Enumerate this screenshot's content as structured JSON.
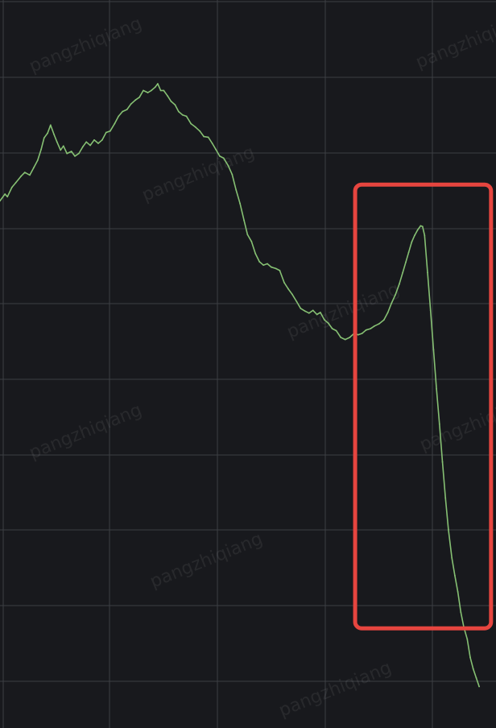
{
  "chart_data": {
    "type": "line",
    "title": "",
    "xlabel": "",
    "ylabel": "",
    "xlim": [
      0,
      100
    ],
    "ylim": [
      0,
      100
    ],
    "grid": true,
    "series": [
      {
        "color": "#86c073",
        "points": [
          [
            0.0,
            74.6
          ],
          [
            1.0,
            75.6
          ],
          [
            1.5,
            75.2
          ],
          [
            2.4,
            76.6
          ],
          [
            3.2,
            77.3
          ],
          [
            4.2,
            78.2
          ],
          [
            5.0,
            78.8
          ],
          [
            6.0,
            78.4
          ],
          [
            6.8,
            79.5
          ],
          [
            7.6,
            80.6
          ],
          [
            8.3,
            82.2
          ],
          [
            8.9,
            83.9
          ],
          [
            9.6,
            84.6
          ],
          [
            10.2,
            85.8
          ],
          [
            10.9,
            84.4
          ],
          [
            11.5,
            83.3
          ],
          [
            12.2,
            82.1
          ],
          [
            12.8,
            82.7
          ],
          [
            13.5,
            81.6
          ],
          [
            14.4,
            81.9
          ],
          [
            15.1,
            81.2
          ],
          [
            15.9,
            81.6
          ],
          [
            16.7,
            82.6
          ],
          [
            17.4,
            83.3
          ],
          [
            18.2,
            82.8
          ],
          [
            19.0,
            83.6
          ],
          [
            19.8,
            83.1
          ],
          [
            20.6,
            83.6
          ],
          [
            21.4,
            84.7
          ],
          [
            22.2,
            84.9
          ],
          [
            23.1,
            86.0
          ],
          [
            23.9,
            87.1
          ],
          [
            24.7,
            87.8
          ],
          [
            25.6,
            88.1
          ],
          [
            26.4,
            88.9
          ],
          [
            27.3,
            89.5
          ],
          [
            28.1,
            89.9
          ],
          [
            28.9,
            90.9
          ],
          [
            29.8,
            90.6
          ],
          [
            30.5,
            90.9
          ],
          [
            31.3,
            91.4
          ],
          [
            31.8,
            91.9
          ],
          [
            32.4,
            90.9
          ],
          [
            33.0,
            90.9
          ],
          [
            33.8,
            90.1
          ],
          [
            34.5,
            89.3
          ],
          [
            35.3,
            88.8
          ],
          [
            36.0,
            87.8
          ],
          [
            36.8,
            87.3
          ],
          [
            37.6,
            87.1
          ],
          [
            38.5,
            86.0
          ],
          [
            39.4,
            85.5
          ],
          [
            40.3,
            84.9
          ],
          [
            41.1,
            84.1
          ],
          [
            42.0,
            84.0
          ],
          [
            42.8,
            83.1
          ],
          [
            43.5,
            82.2
          ],
          [
            44.3,
            81.2
          ],
          [
            45.1,
            80.9
          ],
          [
            46.0,
            79.8
          ],
          [
            46.8,
            78.5
          ],
          [
            47.6,
            76.2
          ],
          [
            48.4,
            74.2
          ],
          [
            49.2,
            71.7
          ],
          [
            49.9,
            69.6
          ],
          [
            50.7,
            68.6
          ],
          [
            51.5,
            66.8
          ],
          [
            52.3,
            65.6
          ],
          [
            53.1,
            65.1
          ],
          [
            53.9,
            65.3
          ],
          [
            54.7,
            64.8
          ],
          [
            55.6,
            64.6
          ],
          [
            56.4,
            64.3
          ],
          [
            57.3,
            62.5
          ],
          [
            58.1,
            61.6
          ],
          [
            58.9,
            60.8
          ],
          [
            59.8,
            59.7
          ],
          [
            60.6,
            58.7
          ],
          [
            61.5,
            58.3
          ],
          [
            62.3,
            58.0
          ],
          [
            63.1,
            58.4
          ],
          [
            63.9,
            57.8
          ],
          [
            64.6,
            58.1
          ],
          [
            65.4,
            57.0
          ],
          [
            66.2,
            56.5
          ],
          [
            67.0,
            55.7
          ],
          [
            67.8,
            55.4
          ],
          [
            68.7,
            54.4
          ],
          [
            69.6,
            54.1
          ],
          [
            70.5,
            54.4
          ],
          [
            71.4,
            55.0
          ],
          [
            72.2,
            54.8
          ],
          [
            73.0,
            55.0
          ],
          [
            73.8,
            55.5
          ],
          [
            74.7,
            55.7
          ],
          [
            75.5,
            56.1
          ],
          [
            76.4,
            56.4
          ],
          [
            77.4,
            57.0
          ],
          [
            78.2,
            58.1
          ],
          [
            78.9,
            59.4
          ],
          [
            79.7,
            60.7
          ],
          [
            80.5,
            62.3
          ],
          [
            81.2,
            64.0
          ],
          [
            81.8,
            65.5
          ],
          [
            82.4,
            67.0
          ],
          [
            83.0,
            68.5
          ],
          [
            83.6,
            69.5
          ],
          [
            84.2,
            70.3
          ],
          [
            84.8,
            70.9
          ],
          [
            85.2,
            70.8
          ],
          [
            85.6,
            69.5
          ],
          [
            86.2,
            64.0
          ],
          [
            86.8,
            58.4
          ],
          [
            87.4,
            52.6
          ],
          [
            88.0,
            46.8
          ],
          [
            88.6,
            41.6
          ],
          [
            89.2,
            36.0
          ],
          [
            89.8,
            30.7
          ],
          [
            90.4,
            26.0
          ],
          [
            91.1,
            21.8
          ],
          [
            91.7,
            19.2
          ],
          [
            92.3,
            16.8
          ],
          [
            92.9,
            13.8
          ],
          [
            93.5,
            11.6
          ],
          [
            94.2,
            9.8
          ],
          [
            94.8,
            7.1
          ],
          [
            95.4,
            5.4
          ],
          [
            96.0,
            4.1
          ],
          [
            96.6,
            2.8
          ]
        ]
      }
    ],
    "annotations": [
      {
        "type": "highlight-rectangle",
        "x_range": [
          71.6,
          99.0
        ],
        "y_range": [
          11.4,
          77.0
        ],
        "color": "#e6453f"
      }
    ]
  },
  "watermark": "pangzhiqiang"
}
